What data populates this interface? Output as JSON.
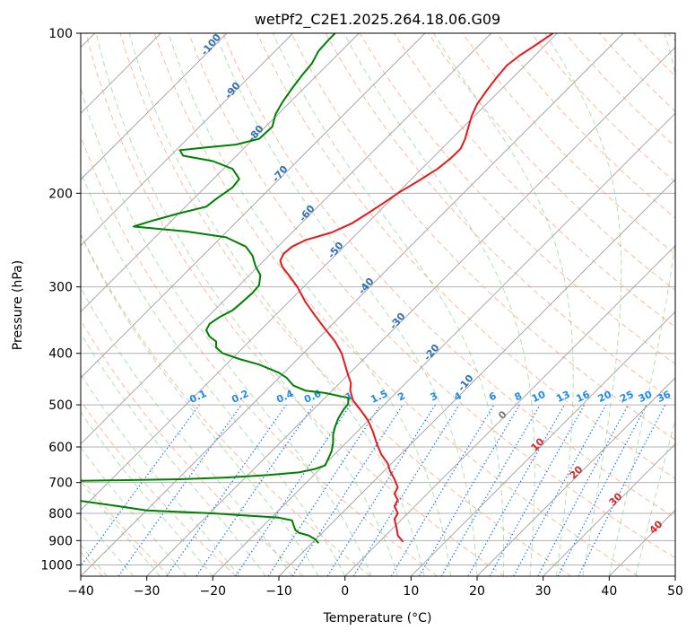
{
  "chart_data": {
    "type": "line",
    "title": "wetPf2_C2E1.2025.264.18.06.G09",
    "xlabel": "Temperature (°C)",
    "ylabel": "Pressure (hPa)",
    "xlim": [
      -40,
      50
    ],
    "ylim": [
      1050,
      100
    ],
    "y_scale": "log",
    "grid": true,
    "x_ticks": [
      -40,
      -30,
      -20,
      -10,
      0,
      10,
      20,
      30,
      40,
      50
    ],
    "y_ticks": [
      100,
      200,
      300,
      400,
      500,
      600,
      700,
      800,
      900,
      1000
    ],
    "skew_factor": 1,
    "series": [
      {
        "color": "#e41a1c",
        "points": [
          [
            8.8,
            905
          ],
          [
            8,
            880
          ],
          [
            7.8,
            850
          ],
          [
            7.5,
            820
          ],
          [
            8,
            800
          ],
          [
            7.5,
            775
          ],
          [
            8,
            755
          ],
          [
            7.5,
            735
          ],
          [
            8,
            715
          ],
          [
            7.5,
            690
          ],
          [
            6.8,
            665
          ],
          [
            6.5,
            645
          ],
          [
            5.5,
            620
          ],
          [
            4.8,
            590
          ],
          [
            4.2,
            560
          ],
          [
            3.5,
            535
          ],
          [
            2.3,
            510
          ],
          [
            1.2,
            490
          ],
          [
            0.8,
            470
          ],
          [
            0.9,
            455
          ],
          [
            0.5,
            440
          ],
          [
            0,
            420
          ],
          [
            -0.5,
            400
          ],
          [
            -1.5,
            380
          ],
          [
            -3,
            360
          ],
          [
            -4.5,
            340
          ],
          [
            -6,
            320
          ],
          [
            -7.2,
            300
          ],
          [
            -8.5,
            285
          ],
          [
            -9.5,
            275
          ],
          [
            -9.8,
            268
          ],
          [
            -9.3,
            260
          ],
          [
            -8,
            252
          ],
          [
            -6,
            245
          ],
          [
            -2,
            237
          ],
          [
            1,
            228
          ],
          [
            3.5,
            218
          ],
          [
            6,
            208
          ],
          [
            8,
            200
          ],
          [
            11,
            190
          ],
          [
            14,
            180
          ],
          [
            16,
            172
          ],
          [
            17.5,
            165
          ],
          [
            18.2,
            158
          ],
          [
            18.7,
            150
          ],
          [
            19.2,
            143
          ],
          [
            20,
            136
          ],
          [
            21.5,
            128
          ],
          [
            23,
            121
          ],
          [
            24.5,
            115
          ],
          [
            26.5,
            110
          ],
          [
            28.5,
            106
          ],
          [
            31.5,
            100
          ]
        ]
      },
      {
        "color": "#008000",
        "points": [
          [
            -4,
            910
          ],
          [
            -4.5,
            895
          ],
          [
            -5.5,
            880
          ],
          [
            -7,
            870
          ],
          [
            -7.5,
            860
          ],
          [
            -7.8,
            840
          ],
          [
            -8,
            825
          ],
          [
            -10,
            815
          ],
          [
            -20,
            800
          ],
          [
            -30,
            790
          ],
          [
            -36,
            770
          ],
          [
            -41,
            755
          ],
          [
            -60,
            740
          ],
          [
            -60,
            700
          ],
          [
            -40,
            695
          ],
          [
            -25,
            690
          ],
          [
            -18,
            685
          ],
          [
            -12,
            678
          ],
          [
            -7,
            670
          ],
          [
            -4.5,
            660
          ],
          [
            -3,
            650
          ],
          [
            -2.5,
            630
          ],
          [
            -2,
            610
          ],
          [
            -1.8,
            590
          ],
          [
            -1.8,
            570
          ],
          [
            -1.5,
            550
          ],
          [
            -1,
            530
          ],
          [
            -0.2,
            510
          ],
          [
            0.5,
            498
          ],
          [
            0.5,
            485
          ],
          [
            -3,
            475
          ],
          [
            -6,
            470
          ],
          [
            -7.8,
            460
          ],
          [
            -8.8,
            445
          ],
          [
            -10,
            435
          ],
          [
            -13,
            420
          ],
          [
            -16,
            410
          ],
          [
            -18.5,
            400
          ],
          [
            -19.5,
            390
          ],
          [
            -19.5,
            380
          ],
          [
            -20.5,
            372
          ],
          [
            -21,
            362
          ],
          [
            -20.5,
            352
          ],
          [
            -19,
            342
          ],
          [
            -17,
            332
          ],
          [
            -15.5,
            320
          ],
          [
            -14,
            308
          ],
          [
            -13,
            298
          ],
          [
            -12.8,
            285
          ],
          [
            -13.5,
            275
          ],
          [
            -14,
            262
          ],
          [
            -15,
            252
          ],
          [
            -18,
            242
          ],
          [
            -24,
            236
          ],
          [
            -32,
            231
          ],
          [
            -29,
            225
          ],
          [
            -25,
            218
          ],
          [
            -21,
            212
          ],
          [
            -19.5,
            205
          ],
          [
            -17,
            195
          ],
          [
            -16,
            188
          ],
          [
            -17,
            180
          ],
          [
            -20,
            174
          ],
          [
            -24.5,
            170
          ],
          [
            -25,
            166
          ],
          [
            -21,
            164
          ],
          [
            -16.5,
            162
          ],
          [
            -13,
            158
          ],
          [
            -11,
            150
          ],
          [
            -10.5,
            142
          ],
          [
            -9.5,
            135
          ],
          [
            -8,
            127
          ],
          [
            -6.5,
            120
          ],
          [
            -5,
            114
          ],
          [
            -4,
            108
          ],
          [
            -2.5,
            103
          ],
          [
            -1.5,
            100
          ]
        ]
      }
    ],
    "mixing_ratio_labels": [
      "0.1",
      "0.2",
      "0.4",
      "0.6",
      "1",
      "1.5",
      "2",
      "3",
      "4",
      "6",
      "8",
      "10",
      "13",
      "16",
      "20",
      "25",
      "30",
      "36"
    ],
    "moist_adiabat_labels": [
      "-100",
      "-90",
      "-80",
      "-70",
      "-60",
      "-50",
      "-40",
      "-30",
      "-20",
      "-10"
    ],
    "dry_adiabat_labels": [
      "0",
      "10",
      "20",
      "30",
      "40"
    ]
  }
}
